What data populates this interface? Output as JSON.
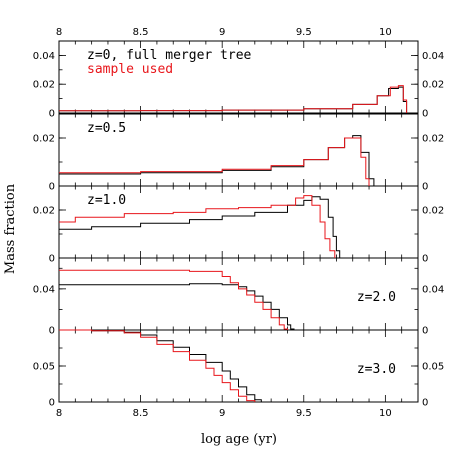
{
  "chart_data": {
    "type": "line",
    "xlabel": "log age (yr)",
    "ylabel": "Mass fraction",
    "xlim": [
      8,
      10.2
    ],
    "x_ticks": [
      "8",
      "8.5",
      "9",
      "9.5",
      "10"
    ],
    "colors": {
      "full_tree": "#000000",
      "sample_used": "#e8161b"
    },
    "panels": [
      {
        "labels": [
          {
            "text": "z=0, full merger tree",
            "color": "#000000"
          },
          {
            "text": "sample used",
            "color": "#e8161b"
          }
        ],
        "label_position": "top-left",
        "ylim": [
          0,
          0.05
        ],
        "y_ticks": [
          {
            "v": 0,
            "t": "0"
          },
          {
            "v": 0.02,
            "t": "0.02"
          },
          {
            "v": 0.04,
            "t": "0.04"
          }
        ],
        "steps": true,
        "series": [
          {
            "color": "#000000",
            "x": [
              8.0,
              8.5,
              9.0,
              9.5,
              9.8,
              9.95,
              10.02,
              10.08,
              10.11,
              10.13
            ],
            "y": [
              0.0015,
              0.0017,
              0.002,
              0.003,
              0.006,
              0.012,
              0.017,
              0.018,
              0.008,
              0.0
            ]
          },
          {
            "color": "#e8161b",
            "x": [
              8.0,
              8.5,
              9.0,
              9.5,
              9.8,
              9.95,
              10.03,
              10.08,
              10.11,
              10.13
            ],
            "y": [
              0.0015,
              0.0017,
              0.002,
              0.003,
              0.006,
              0.012,
              0.018,
              0.019,
              0.009,
              0.0
            ]
          }
        ]
      },
      {
        "labels": [
          {
            "text": "z=0.5",
            "color": "#000000"
          }
        ],
        "label_position": "top-left",
        "ylim": [
          0,
          0.03
        ],
        "y_ticks": [
          {
            "v": 0,
            "t": "0"
          },
          {
            "v": 0.02,
            "t": "0.02"
          }
        ],
        "steps": true,
        "series": [
          {
            "color": "#000000",
            "x": [
              8.0,
              8.5,
              9.0,
              9.3,
              9.5,
              9.65,
              9.75,
              9.8,
              9.85,
              9.9,
              9.93
            ],
            "y": [
              0.005,
              0.0055,
              0.0065,
              0.008,
              0.011,
              0.016,
              0.02,
              0.021,
              0.014,
              0.003,
              0.0
            ]
          },
          {
            "color": "#e8161b",
            "x": [
              8.0,
              8.5,
              9.0,
              9.3,
              9.5,
              9.65,
              9.75,
              9.8,
              9.85,
              9.88,
              9.9
            ],
            "y": [
              0.0055,
              0.006,
              0.007,
              0.0085,
              0.011,
              0.016,
              0.02,
              0.02,
              0.012,
              0.003,
              0.0
            ]
          }
        ]
      },
      {
        "labels": [
          {
            "text": "z=1.0",
            "color": "#000000"
          }
        ],
        "label_position": "top-left",
        "ylim": [
          0,
          0.03
        ],
        "y_ticks": [
          {
            "v": 0,
            "t": "0"
          },
          {
            "v": 0.02,
            "t": "0.02"
          }
        ],
        "steps": true,
        "series": [
          {
            "color": "#000000",
            "x": [
              8.0,
              8.2,
              8.5,
              8.8,
              9.0,
              9.2,
              9.4,
              9.5,
              9.55,
              9.6,
              9.65,
              9.68,
              9.7,
              9.72
            ],
            "y": [
              0.012,
              0.013,
              0.0145,
              0.016,
              0.0175,
              0.019,
              0.022,
              0.024,
              0.0255,
              0.0245,
              0.017,
              0.009,
              0.003,
              0.0
            ]
          },
          {
            "color": "#e8161b",
            "x": [
              8.0,
              8.1,
              8.4,
              8.7,
              8.9,
              9.1,
              9.3,
              9.45,
              9.5,
              9.55,
              9.6,
              9.63,
              9.66,
              9.69
            ],
            "y": [
              0.015,
              0.017,
              0.0185,
              0.019,
              0.0205,
              0.021,
              0.022,
              0.025,
              0.026,
              0.022,
              0.015,
              0.008,
              0.003,
              0.0
            ]
          }
        ]
      },
      {
        "labels": [
          {
            "text": "z=2.0",
            "color": "#000000"
          }
        ],
        "label_position": "right",
        "ylim": [
          0,
          0.07
        ],
        "y_ticks": [
          {
            "v": 0,
            "t": "0"
          },
          {
            "v": 0.04,
            "t": "0.04"
          }
        ],
        "steps": true,
        "series": [
          {
            "color": "#000000",
            "x": [
              8.0,
              8.8,
              9.0,
              9.1,
              9.15,
              9.2,
              9.25,
              9.3,
              9.35,
              9.4,
              9.42,
              9.44
            ],
            "y": [
              0.044,
              0.045,
              0.044,
              0.042,
              0.038,
              0.033,
              0.027,
              0.02,
              0.012,
              0.005,
              0.001,
              0.0
            ]
          },
          {
            "color": "#e8161b",
            "x": [
              8.0,
              8.8,
              9.0,
              9.05,
              9.1,
              9.15,
              9.2,
              9.25,
              9.3,
              9.35,
              9.38,
              9.4
            ],
            "y": [
              0.058,
              0.057,
              0.052,
              0.046,
              0.04,
              0.034,
              0.027,
              0.02,
              0.012,
              0.005,
              0.001,
              0.0
            ]
          }
        ]
      },
      {
        "labels": [
          {
            "text": "z=3.0",
            "color": "#000000"
          }
        ],
        "label_position": "right",
        "ylim": [
          0,
          0.1
        ],
        "y_ticks": [
          {
            "v": 0,
            "t": "0"
          },
          {
            "v": 0.05,
            "t": "0.05"
          }
        ],
        "steps": true,
        "series": [
          {
            "color": "#000000",
            "x": [
              8.0,
              8.2,
              8.4,
              8.5,
              8.6,
              8.7,
              8.8,
              8.9,
              9.0,
              9.05,
              9.1,
              9.15,
              9.2,
              9.24
            ],
            "y": [
              0.1,
              0.099,
              0.097,
              0.093,
              0.085,
              0.076,
              0.066,
              0.055,
              0.043,
              0.032,
              0.021,
              0.01,
              0.003,
              0.0
            ]
          },
          {
            "color": "#e8161b",
            "x": [
              8.0,
              8.2,
              8.4,
              8.5,
              8.6,
              8.7,
              8.8,
              8.9,
              8.95,
              9.0,
              9.05,
              9.1,
              9.15,
              9.2
            ],
            "y": [
              0.1,
              0.099,
              0.096,
              0.09,
              0.08,
              0.07,
              0.058,
              0.047,
              0.037,
              0.027,
              0.017,
              0.008,
              0.002,
              0.0
            ]
          }
        ]
      }
    ]
  }
}
